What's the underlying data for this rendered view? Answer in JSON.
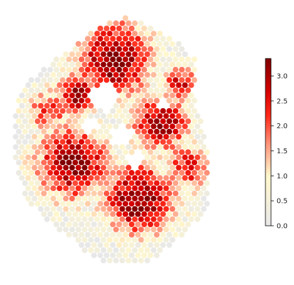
{
  "chart_data": {
    "type": "scatter",
    "title": "",
    "xlabel": "",
    "ylabel": "",
    "axes_visible": false,
    "description_note": "",
    "colormap": {
      "name": "Reds-like (light gray to dark red)",
      "stops": [
        {
          "value": 0.0,
          "color": "#e8e8e8"
        },
        {
          "value": 1.0,
          "color": "#fff7cc"
        },
        {
          "value": 1.6,
          "color": "#ff9a80"
        },
        {
          "value": 2.2,
          "color": "#ff2a1a"
        },
        {
          "value": 2.7,
          "color": "#d40000"
        },
        {
          "value": 3.35,
          "color": "#800000"
        }
      ],
      "vmin": 0.0,
      "vmax": 3.35
    },
    "colorbar": {
      "ticks": [
        0.0,
        0.5,
        1.0,
        1.5,
        2.0,
        2.5,
        3.0
      ],
      "tick_labels": [
        "0.0",
        "0.5",
        "1.0",
        "1.5",
        "2.0",
        "2.5",
        "3.0"
      ],
      "placement": "right"
    },
    "spots": {
      "grid": {
        "row_spacing": 1,
        "col_spacing": 1,
        "hex_offset": true
      },
      "region_summary": [
        {
          "region": "top cluster",
          "value_range": [
            2.5,
            3.35
          ]
        },
        {
          "region": "right band",
          "value_range": [
            2.5,
            3.35
          ]
        },
        {
          "region": "left-center block",
          "value_range": [
            2.5,
            3.35
          ]
        },
        {
          "region": "bottom-center block",
          "value_range": [
            2.5,
            3.35
          ]
        },
        {
          "region": "periphery",
          "value_range": [
            0.0,
            1.6
          ]
        }
      ]
    }
  }
}
